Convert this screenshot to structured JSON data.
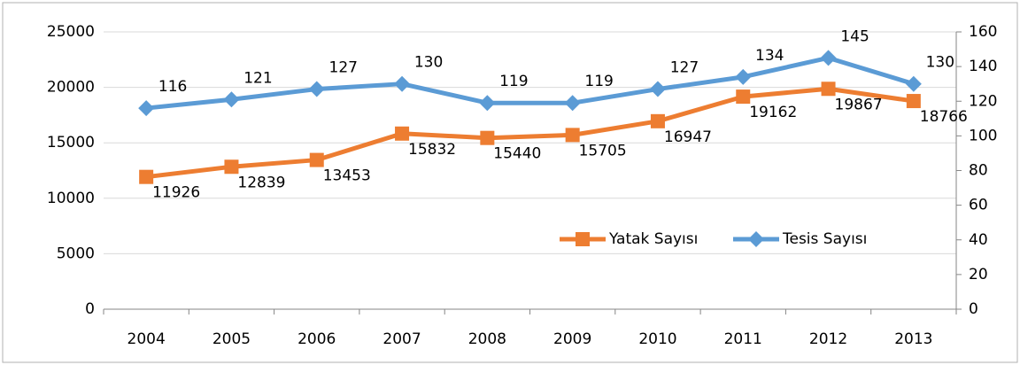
{
  "chart_data": {
    "type": "line",
    "categories": [
      "2004",
      "2005",
      "2006",
      "2007",
      "2008",
      "2009",
      "2010",
      "2011",
      "2012",
      "2013"
    ],
    "series": [
      {
        "name": "Yatak Sayısı",
        "color": "#ed7d31",
        "marker": "square",
        "values": [
          11926,
          12839,
          13453,
          15832,
          15440,
          15705,
          16947,
          19162,
          19867,
          18766
        ]
      },
      {
        "name": "Tesis Sayısı",
        "color": "#5b9bd5",
        "marker": "diamond",
        "axis": "y2",
        "values": [
          116,
          121,
          127,
          130,
          119,
          119,
          127,
          134,
          145,
          130
        ]
      }
    ],
    "ylim": [
      0,
      25000
    ],
    "yticks": [
      0,
      5000,
      10000,
      15000,
      20000,
      25000
    ],
    "y2lim": [
      0,
      160
    ],
    "y2ticks": [
      0,
      20,
      40,
      60,
      80,
      100,
      120,
      140,
      160
    ],
    "grid": true,
    "legend": "bottom-right"
  }
}
